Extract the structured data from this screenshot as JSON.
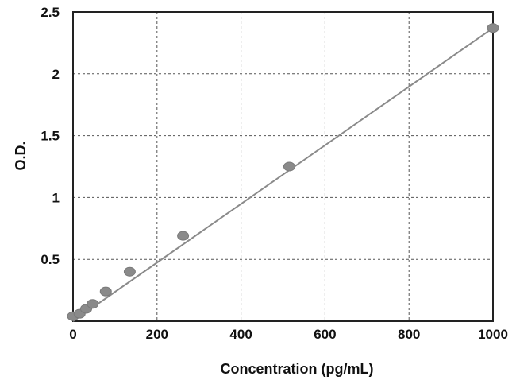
{
  "chart_data": {
    "type": "scatter",
    "title": "",
    "xlabel": "Concentration (pg/mL)",
    "ylabel": "O.D.",
    "xlim": [
      0,
      1000
    ],
    "ylim": [
      0,
      2.5
    ],
    "x_ticks": [
      "0",
      "200",
      "400",
      "600",
      "800",
      "1000"
    ],
    "y_ticks": [
      "0.5",
      "1",
      "1.5",
      "2",
      "2.5"
    ],
    "grid": true,
    "legend": "none",
    "point_color": "#8a8a8a",
    "line_color": "#8a8a8a",
    "series": [
      {
        "points": [
          {
            "x": 0,
            "y": 0.04
          },
          {
            "x": 15.6,
            "y": 0.06
          },
          {
            "x": 31.2,
            "y": 0.1
          },
          {
            "x": 46.8,
            "y": 0.14
          },
          {
            "x": 78,
            "y": 0.24
          },
          {
            "x": 135,
            "y": 0.4
          },
          {
            "x": 262,
            "y": 0.69
          },
          {
            "x": 515,
            "y": 1.25
          },
          {
            "x": 1000,
            "y": 2.37
          }
        ]
      }
    ],
    "fit_line": {
      "x": [
        0,
        1000
      ],
      "y": [
        0.0,
        2.37
      ]
    }
  }
}
